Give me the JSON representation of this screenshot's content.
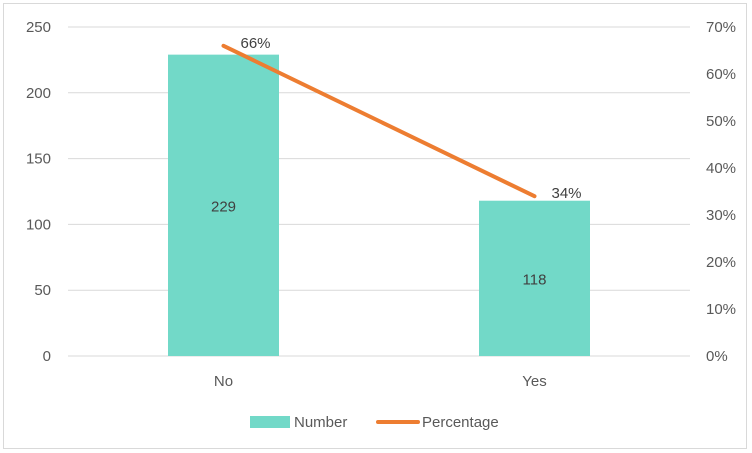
{
  "chart_data": {
    "type": "bar",
    "categories": [
      "No",
      "Yes"
    ],
    "series": [
      {
        "name": "Number",
        "kind": "bar",
        "axis": "left",
        "values": [
          229,
          118
        ],
        "labels": [
          "229",
          "118"
        ],
        "color": "#72D9C8"
      },
      {
        "name": "Percentage",
        "kind": "line",
        "axis": "right",
        "values": [
          66,
          34
        ],
        "labels": [
          "66%",
          "34%"
        ],
        "color": "#ED7D31"
      }
    ],
    "left_axis": {
      "min": 0,
      "max": 250,
      "step": 50,
      "ticks": [
        "0",
        "50",
        "100",
        "150",
        "200",
        "250"
      ]
    },
    "right_axis": {
      "min": 0,
      "max": 70,
      "step": 10,
      "ticks": [
        "0%",
        "10%",
        "20%",
        "30%",
        "40%",
        "50%",
        "60%",
        "70%"
      ]
    },
    "title": "",
    "xlabel": "",
    "ylabel": "",
    "grid": true,
    "legend_position": "bottom"
  }
}
